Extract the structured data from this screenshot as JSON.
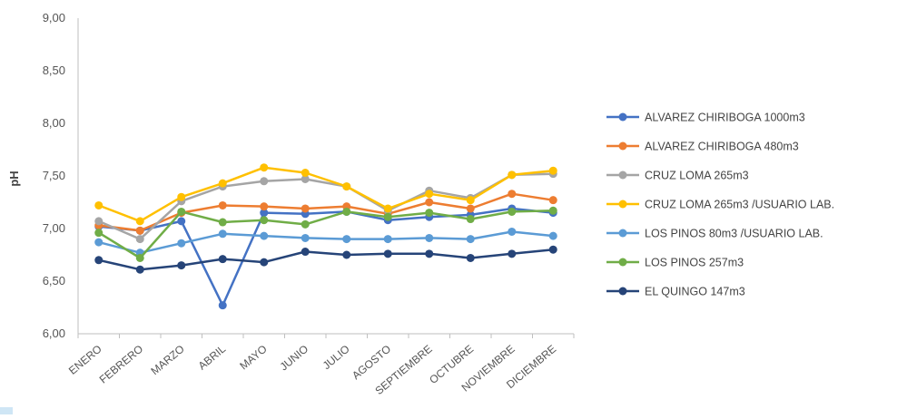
{
  "chart_data": {
    "type": "line",
    "title": "",
    "xlabel": "",
    "ylabel": "pH",
    "ylim": [
      6.0,
      9.0
    ],
    "yticks": [
      "6,00",
      "6,50",
      "7,00",
      "7,50",
      "8,00",
      "8,50",
      "9,00"
    ],
    "ytick_values": [
      6.0,
      6.5,
      7.0,
      7.5,
      8.0,
      8.5,
      9.0
    ],
    "grid": "off",
    "legend_position": "right",
    "categories": [
      "ENERO",
      "FEBRERO",
      "MARZO",
      "ABRIL",
      "MAYO",
      "JUNIO",
      "JULIO",
      "AGOSTO",
      "SEPTIEMBRE",
      "OCTUBRE",
      "NOVIEMBRE",
      "DICIEMBRE"
    ],
    "series": [
      {
        "name": "ALVAREZ CHIRIBOGA 1000m3",
        "color": "#4472c4",
        "values": [
          7.02,
          6.98,
          7.07,
          6.27,
          7.15,
          7.14,
          7.16,
          7.08,
          7.11,
          7.13,
          7.19,
          7.15
        ]
      },
      {
        "name": "ALVAREZ CHIRIBOGA 480m3",
        "color": "#ed7d31",
        "values": [
          7.03,
          6.98,
          7.15,
          7.22,
          7.21,
          7.19,
          7.21,
          7.14,
          7.25,
          7.19,
          7.33,
          7.27
        ]
      },
      {
        "name": "CRUZ LOMA 265m3",
        "color": "#a5a5a5",
        "values": [
          7.07,
          6.9,
          7.26,
          7.4,
          7.45,
          7.47,
          7.4,
          7.17,
          7.36,
          7.29,
          7.51,
          7.52
        ]
      },
      {
        "name": "CRUZ LOMA 265m3 /USUARIO LAB.",
        "color": "#ffc000",
        "values": [
          7.22,
          7.07,
          7.3,
          7.43,
          7.58,
          7.53,
          7.4,
          7.19,
          7.33,
          7.27,
          7.51,
          7.55
        ]
      },
      {
        "name": "LOS PINOS 80m3 /USUARIO LAB.",
        "color": "#5b9bd5",
        "values": [
          6.87,
          6.77,
          6.86,
          6.95,
          6.93,
          6.91,
          6.9,
          6.9,
          6.91,
          6.9,
          6.97,
          6.93
        ]
      },
      {
        "name": "LOS PINOS 257m3",
        "color": "#70ad47",
        "values": [
          6.96,
          6.72,
          7.16,
          7.06,
          7.08,
          7.04,
          7.16,
          7.11,
          7.15,
          7.09,
          7.16,
          7.17
        ]
      },
      {
        "name": "EL QUINGO 147m3",
        "color": "#264478",
        "values": [
          6.7,
          6.61,
          6.65,
          6.71,
          6.68,
          6.78,
          6.75,
          6.76,
          6.76,
          6.72,
          6.76,
          6.8
        ]
      }
    ]
  }
}
